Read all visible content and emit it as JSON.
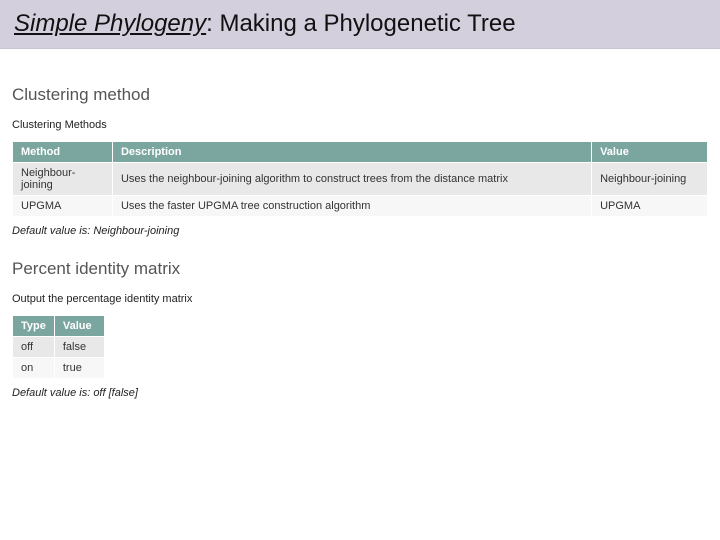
{
  "title": {
    "lead": "Simple Phylogeny",
    "rest": ": Making a Phylogenetic Tree"
  },
  "header_bg": "#d4cfdd",
  "table_header_bg": "#7ba6a0",
  "table_header_fg": "#ffffff",
  "row_odd_bg": "#e8e8e8",
  "row_even_bg": "#f7f7f7",
  "clustering": {
    "heading": "Clustering method",
    "sub_label": "Clustering Methods",
    "columns": [
      "Method",
      "Description",
      "Value"
    ],
    "rows": [
      [
        "Neighbour-joining",
        "Uses the neighbour-joining algorithm to construct trees from the distance matrix",
        "Neighbour-joining"
      ],
      [
        "UPGMA",
        "Uses the faster UPGMA tree construction algorithm",
        "UPGMA"
      ]
    ],
    "default_note": "Default value is: Neighbour-joining"
  },
  "pim": {
    "heading": "Percent identity matrix",
    "sub_label": "Output the percentage identity matrix",
    "columns": [
      "Type",
      "Value"
    ],
    "rows": [
      [
        "off",
        "false"
      ],
      [
        "on",
        "true"
      ]
    ],
    "default_note": "Default value is: off [false]"
  }
}
